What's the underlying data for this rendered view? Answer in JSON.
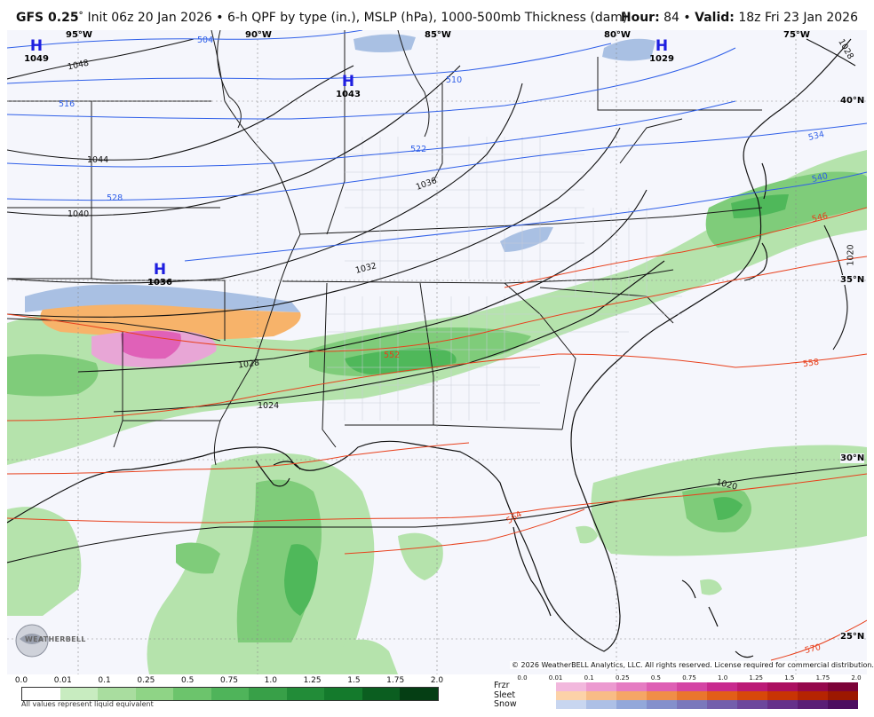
{
  "header": {
    "model": "GFS 0.25",
    "degree_mark": "°",
    "description": "Init 06z 20 Jan 2026 • 6-h QPF by type (in.), MSLP (hPa), 1000-500mb Thickness (dam)",
    "hour_label": "Hour:",
    "hour_value": "84",
    "separator": "•",
    "valid_label": "Valid:",
    "valid_value": "18z Fri 23 Jan 2026"
  },
  "map": {
    "longitude_labels": [
      "95°W",
      "90°W",
      "85°W",
      "80°W",
      "75°W"
    ],
    "latitude_labels": [
      "40°N",
      "35°N",
      "30°N",
      "25°N"
    ],
    "pressure_centers": [
      {
        "symbol": "H",
        "value": "1049"
      },
      {
        "symbol": "H",
        "value": "1043"
      },
      {
        "symbol": "H",
        "value": "1029"
      },
      {
        "symbol": "H",
        "value": "1036"
      }
    ],
    "isobar_labels": [
      "1048",
      "1044",
      "1040",
      "1036",
      "1032",
      "1028",
      "1024",
      "1020",
      "1020",
      "1028"
    ],
    "thickness_labels_blue": [
      "504",
      "510",
      "516",
      "522",
      "528",
      "534",
      "540"
    ],
    "thickness_labels_red": [
      "546",
      "552",
      "558",
      "564",
      "570"
    ],
    "colors": {
      "background": "#f5f6fc",
      "isobar": "#111111",
      "thickness_cold": "#2f5fe8",
      "thickness_warm": "#e8401c",
      "high_symbol": "#1e1ee0",
      "rain_light": "#b5e3ac",
      "rain_medium": "#7fcc7a",
      "rain_heavy": "#4fb85a",
      "snow": "#a9c0e3",
      "sleet": "#f7b36a",
      "frzr": "#e880c0"
    }
  },
  "copyright": "© 2026 WeatherBELL Analytics, LLC. All rights reserved. License required for commercial distribution.",
  "logo_text": "WEATHERBELL",
  "legend": {
    "rain_ticks": [
      "0.0",
      "0.01",
      "0.1",
      "0.25",
      "0.5",
      "0.75",
      "1.0",
      "1.25",
      "1.5",
      "1.75",
      "2.0"
    ],
    "rain_colors": [
      "#ffffff",
      "#c8ecc0",
      "#a9dd9f",
      "#8fd486",
      "#6cc46c",
      "#4fb45a",
      "#38a048",
      "#228c38",
      "#147a2c",
      "#0b5e20",
      "#053e14"
    ],
    "rain_note": "All values represent liquid equivalent",
    "ptype_labels": [
      "Frzr",
      "Sleet",
      "Snow"
    ],
    "ptype_ticks": [
      "0.0",
      "0.01",
      "0.1",
      "0.25",
      "0.5",
      "0.75",
      "1.0",
      "1.25",
      "1.5",
      "1.75",
      "2.0"
    ],
    "frzr_colors": [
      "#f2b8dd",
      "#ec9ad0",
      "#e57cc2",
      "#de5fb4",
      "#d445a4",
      "#c82a8e",
      "#bb1a76",
      "#ab0f60",
      "#95084c",
      "#7c0338"
    ],
    "sleet_colors": [
      "#fcd2a8",
      "#f8bc86",
      "#f5a666",
      "#f08e48",
      "#ea762e",
      "#e25e18",
      "#d7480a",
      "#c83404",
      "#b52402",
      "#9c1801"
    ],
    "snow_colors": [
      "#c8d6f0",
      "#adc0e6",
      "#93a8da",
      "#8490cc",
      "#7a78bc",
      "#735fac",
      "#6c479c",
      "#65318a",
      "#5a1e76",
      "#4c0e60"
    ]
  }
}
